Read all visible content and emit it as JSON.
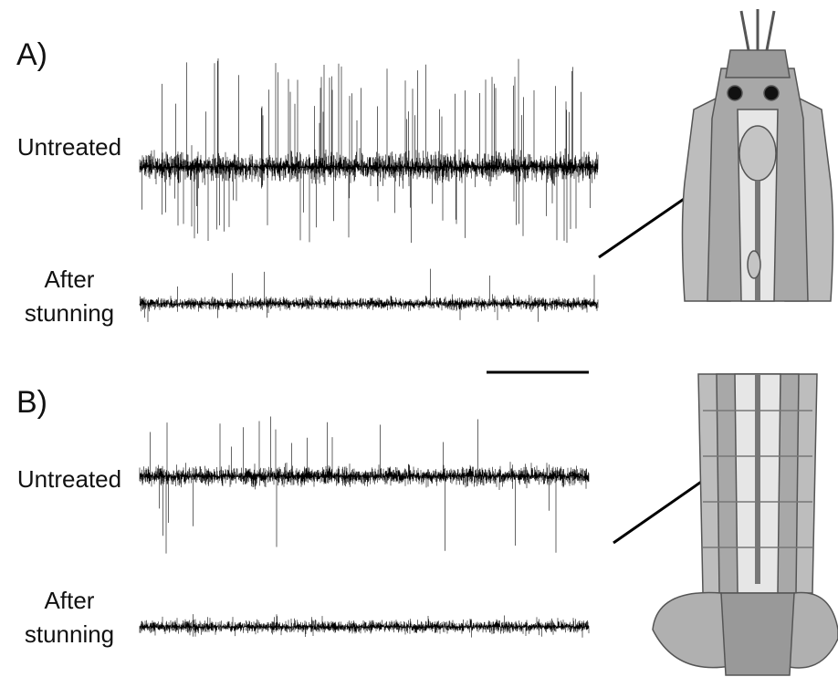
{
  "panels": [
    {
      "label": "A)",
      "untreated": "Untreated",
      "after_stunning": [
        "After",
        "stunning"
      ]
    },
    {
      "label": "B)",
      "untreated": "Untreated",
      "after_stunning": [
        "After",
        "stunning"
      ]
    }
  ]
}
